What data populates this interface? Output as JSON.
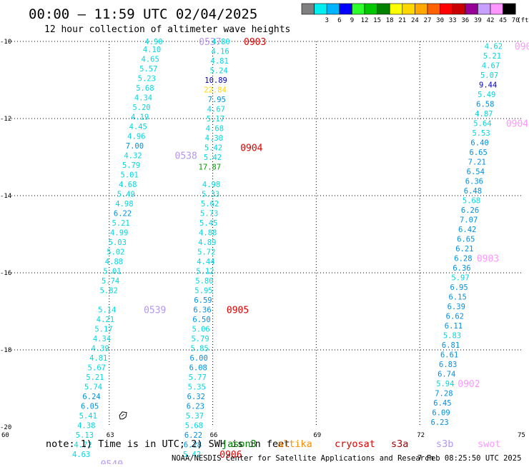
{
  "title": "00:00 — 11:59 UTC 02/04/2025",
  "subtitle": "12 hour collection of altimeter wave heights",
  "legend": {
    "unit": "(ft)",
    "bins": [
      {
        "label": "",
        "color": "#7f7f7f"
      },
      {
        "label": "3",
        "color": "#00eeee"
      },
      {
        "label": "6",
        "color": "#00b4ff"
      },
      {
        "label": "9",
        "color": "#0000ff"
      },
      {
        "label": "12",
        "color": "#2cff2c"
      },
      {
        "label": "15",
        "color": "#00c800"
      },
      {
        "label": "18",
        "color": "#008200"
      },
      {
        "label": "21",
        "color": "#ffff00"
      },
      {
        "label": "24",
        "color": "#ffd700"
      },
      {
        "label": "27",
        "color": "#ffa800"
      },
      {
        "label": "30",
        "color": "#ff6000"
      },
      {
        "label": "33",
        "color": "#ff0000"
      },
      {
        "label": "36",
        "color": "#c80000"
      },
      {
        "label": "39",
        "color": "#960096"
      },
      {
        "label": "42",
        "color": "#c8a0ff"
      },
      {
        "label": "45",
        "color": "#ff96ff"
      },
      {
        "label": "70",
        "color": "#000000"
      }
    ]
  },
  "map": {
    "lon_min": 60,
    "lon_max": 75,
    "lat_min": -20,
    "lat_max": -10,
    "x_ticks": [
      {
        "value": 60,
        "label": "60"
      },
      {
        "value": 63,
        "label": "63"
      },
      {
        "value": 66,
        "label": "66"
      },
      {
        "value": 69,
        "label": "69"
      },
      {
        "value": 72,
        "label": "72"
      },
      {
        "value": 75,
        "label": "75"
      }
    ],
    "y_ticks": [
      {
        "value": -10,
        "label": "-10"
      },
      {
        "value": -12,
        "label": "-12"
      },
      {
        "value": -14,
        "label": "-14"
      },
      {
        "value": -16,
        "label": "-16"
      },
      {
        "value": -18,
        "label": "-18"
      },
      {
        "value": -20,
        "label": "-20"
      }
    ],
    "gridlines": true,
    "island": {
      "lon": 63.4,
      "lat": -19.7
    }
  },
  "colors": {
    "swh_low": "#00d8e0",
    "swh_mid": "#0090e0",
    "swh_high": "#0000c8",
    "swh_22": "#ffd700",
    "swh_17": "#00a000",
    "pass_label_swot": "#ff96ff",
    "pass_label_s3b": "#b496f0",
    "pass_label_s3a": "#dd0000"
  },
  "tracks": [
    {
      "name": "0537",
      "color_key": "pass_label_s3b",
      "label_at": {
        "lon": 65.6,
        "lat": -10.0
      },
      "points": [
        {
          "lon": 64.55,
          "lat": -10.0,
          "v": "4.90"
        },
        {
          "lon": 64.5,
          "lat": -10.2,
          "v": "4.10"
        },
        {
          "lon": 64.45,
          "lat": -10.45,
          "v": "4.65"
        },
        {
          "lon": 64.4,
          "lat": -10.7,
          "v": "5.57"
        },
        {
          "lon": 64.35,
          "lat": -10.95,
          "v": "5.23"
        },
        {
          "lon": 64.3,
          "lat": -11.2,
          "v": "5.68"
        },
        {
          "lon": 64.25,
          "lat": -11.45,
          "v": "4.34"
        },
        {
          "lon": 64.2,
          "lat": -11.7,
          "v": "5.20"
        },
        {
          "lon": 64.15,
          "lat": -11.95,
          "v": "4.19"
        },
        {
          "lon": 64.1,
          "lat": -12.2,
          "v": "4.45"
        },
        {
          "lon": 64.05,
          "lat": -12.45,
          "v": "4.96"
        },
        {
          "lon": 64.0,
          "lat": -12.7,
          "v": "7.00"
        }
      ]
    },
    {
      "name": "0538",
      "color_key": "pass_label_s3b",
      "label_at": {
        "lon": 64.9,
        "lat": -12.95
      },
      "points": [
        {
          "lon": 63.95,
          "lat": -12.95,
          "v": "4.32"
        },
        {
          "lon": 63.9,
          "lat": -13.2,
          "v": "5.79"
        },
        {
          "lon": 63.85,
          "lat": -13.45,
          "v": "5.01"
        },
        {
          "lon": 63.8,
          "lat": -13.7,
          "v": "4.68"
        },
        {
          "lon": 63.75,
          "lat": -13.95,
          "v": "5.49"
        },
        {
          "lon": 63.7,
          "lat": -14.2,
          "v": "4.98"
        },
        {
          "lon": 63.65,
          "lat": -14.45,
          "v": "6.22"
        },
        {
          "lon": 63.6,
          "lat": -14.7,
          "v": "5.21"
        },
        {
          "lon": 63.55,
          "lat": -14.95,
          "v": "4.99"
        },
        {
          "lon": 63.5,
          "lat": -15.2,
          "v": "5.03"
        },
        {
          "lon": 63.45,
          "lat": -15.45,
          "v": "5.02"
        },
        {
          "lon": 63.4,
          "lat": -15.7,
          "v": "4.88"
        },
        {
          "lon": 63.35,
          "lat": -15.95,
          "v": "5.01"
        },
        {
          "lon": 63.3,
          "lat": -16.2,
          "v": "5.74"
        },
        {
          "lon": 63.25,
          "lat": -16.45,
          "v": "5.82"
        }
      ]
    },
    {
      "name": "0539",
      "color_key": "pass_label_s3b",
      "label_at": {
        "lon": 64.0,
        "lat": -16.95
      },
      "points": [
        {
          "lon": 63.2,
          "lat": -16.95,
          "v": "5.14"
        },
        {
          "lon": 63.15,
          "lat": -17.2,
          "v": "4.21"
        },
        {
          "lon": 63.1,
          "lat": -17.45,
          "v": "5.17"
        },
        {
          "lon": 63.05,
          "lat": -17.7,
          "v": "4.34"
        },
        {
          "lon": 63.0,
          "lat": -17.95,
          "v": "4.39"
        },
        {
          "lon": 62.95,
          "lat": -18.2,
          "v": "4.81"
        },
        {
          "lon": 62.9,
          "lat": -18.45,
          "v": "5.67"
        },
        {
          "lon": 62.85,
          "lat": -18.7,
          "v": "5.21"
        },
        {
          "lon": 62.8,
          "lat": -18.95,
          "v": "5.74"
        },
        {
          "lon": 62.75,
          "lat": -19.2,
          "v": "6.24"
        },
        {
          "lon": 62.7,
          "lat": -19.45,
          "v": "6.05"
        },
        {
          "lon": 62.65,
          "lat": -19.7,
          "v": "5.41"
        },
        {
          "lon": 62.6,
          "lat": -19.95,
          "v": "4.38"
        },
        {
          "lon": 62.55,
          "lat": -20.2,
          "v": "5.13"
        },
        {
          "lon": 62.5,
          "lat": -20.45,
          "v": "4.72"
        },
        {
          "lon": 62.45,
          "lat": -20.7,
          "v": "4.63"
        }
      ]
    },
    {
      "name": "0903",
      "color_key": "pass_label_s3a",
      "label_at": {
        "lon": 66.9,
        "lat": -10.0
      },
      "points": [
        {
          "lon": 66.5,
          "lat": -10.0,
          "v": "4.80"
        },
        {
          "lon": 66.48,
          "lat": -10.25,
          "v": "4.16"
        },
        {
          "lon": 66.46,
          "lat": -10.5,
          "v": "4.81"
        },
        {
          "lon": 66.44,
          "lat": -10.75,
          "v": "5.24"
        },
        {
          "lon": 66.42,
          "lat": -11.0,
          "v": "10.89",
          "c": "swh_high"
        },
        {
          "lon": 66.4,
          "lat": -11.25,
          "v": "22.84",
          "c": "swh_22"
        },
        {
          "lon": 66.38,
          "lat": -11.5,
          "v": "7.95"
        },
        {
          "lon": 66.36,
          "lat": -11.75,
          "v": "4.67"
        },
        {
          "lon": 66.34,
          "lat": -12.0,
          "v": "5.17"
        },
        {
          "lon": 66.32,
          "lat": -12.25,
          "v": "4.68"
        },
        {
          "lon": 66.3,
          "lat": -12.5,
          "v": "4.30"
        }
      ]
    },
    {
      "name": "0904",
      "color_key": "pass_label_s3a",
      "label_at": {
        "lon": 66.8,
        "lat": -12.75
      },
      "points": [
        {
          "lon": 66.28,
          "lat": -12.75,
          "v": "5.42"
        },
        {
          "lon": 66.26,
          "lat": -13.0,
          "v": "5.42"
        },
        {
          "lon": 66.24,
          "lat": -13.25,
          "v": "17.87",
          "c": "swh_17"
        },
        {
          "lon": 66.22,
          "lat": -13.7,
          "v": "4.98"
        },
        {
          "lon": 66.2,
          "lat": -13.95,
          "v": "5.33"
        },
        {
          "lon": 66.18,
          "lat": -14.2,
          "v": "5.62"
        },
        {
          "lon": 66.16,
          "lat": -14.45,
          "v": "5.73"
        },
        {
          "lon": 66.14,
          "lat": -14.7,
          "v": "5.45"
        },
        {
          "lon": 66.12,
          "lat": -14.95,
          "v": "4.88"
        },
        {
          "lon": 66.1,
          "lat": -15.2,
          "v": "4.89"
        },
        {
          "lon": 66.08,
          "lat": -15.45,
          "v": "5.72"
        },
        {
          "lon": 66.06,
          "lat": -15.7,
          "v": "4.44"
        },
        {
          "lon": 66.04,
          "lat": -15.95,
          "v": "5.12"
        },
        {
          "lon": 66.02,
          "lat": -16.2,
          "v": "5.80"
        },
        {
          "lon": 66.0,
          "lat": -16.45,
          "v": "5.95"
        },
        {
          "lon": 65.98,
          "lat": -16.7,
          "v": "6.59"
        }
      ]
    },
    {
      "name": "0905",
      "color_key": "pass_label_s3a",
      "label_at": {
        "lon": 66.4,
        "lat": -16.95
      },
      "points": [
        {
          "lon": 65.96,
          "lat": -16.95,
          "v": "6.36"
        },
        {
          "lon": 65.94,
          "lat": -17.2,
          "v": "6.50"
        },
        {
          "lon": 65.92,
          "lat": -17.45,
          "v": "5.06"
        },
        {
          "lon": 65.9,
          "lat": -17.7,
          "v": "5.79"
        },
        {
          "lon": 65.88,
          "lat": -17.95,
          "v": "5.85"
        },
        {
          "lon": 65.86,
          "lat": -18.2,
          "v": "6.00"
        },
        {
          "lon": 65.84,
          "lat": -18.45,
          "v": "6.08"
        },
        {
          "lon": 65.82,
          "lat": -18.7,
          "v": "5.77"
        },
        {
          "lon": 65.8,
          "lat": -18.95,
          "v": "5.35"
        },
        {
          "lon": 65.78,
          "lat": -19.2,
          "v": "6.32"
        },
        {
          "lon": 65.76,
          "lat": -19.45,
          "v": "6.23"
        },
        {
          "lon": 65.74,
          "lat": -19.7,
          "v": "5.37"
        },
        {
          "lon": 65.72,
          "lat": -19.95,
          "v": "5.68"
        },
        {
          "lon": 65.7,
          "lat": -20.2,
          "v": "6.22"
        },
        {
          "lon": 65.68,
          "lat": -20.45,
          "v": "6.28"
        },
        {
          "lon": 65.66,
          "lat": -20.7,
          "v": "5.42"
        }
      ]
    },
    {
      "name": "0906",
      "color_key": "pass_label_s3a",
      "label_at": {
        "lon": 66.2,
        "lat": -20.7
      },
      "points": []
    },
    {
      "name": "0540",
      "color_key": "pass_label_s3b",
      "label_at": {
        "lon": 62.75,
        "lat": -20.95
      },
      "points": []
    },
    {
      "name": "090",
      "color_key": "pass_label_swot",
      "label_at": {
        "lon": 74.75,
        "lat": -10.12
      },
      "points": [
        {
          "lon": 74.4,
          "lat": -10.12,
          "v": "4.62"
        },
        {
          "lon": 74.36,
          "lat": -10.37,
          "v": "5.21"
        },
        {
          "lon": 74.32,
          "lat": -10.62,
          "v": "4.67"
        },
        {
          "lon": 74.28,
          "lat": -10.87,
          "v": "5.07"
        },
        {
          "lon": 74.24,
          "lat": -11.12,
          "v": "9.44",
          "c": "swh_high"
        },
        {
          "lon": 74.2,
          "lat": -11.37,
          "v": "5.49"
        },
        {
          "lon": 74.16,
          "lat": -11.62,
          "v": "6.58"
        },
        {
          "lon": 74.12,
          "lat": -11.87,
          "v": "4.87"
        }
      ]
    },
    {
      "name": "0904",
      "color_key": "pass_label_swot",
      "label_at": {
        "lon": 74.5,
        "lat": -12.12
      },
      "points": [
        {
          "lon": 74.08,
          "lat": -12.12,
          "v": "5.64"
        },
        {
          "lon": 74.04,
          "lat": -12.37,
          "v": "5.53"
        },
        {
          "lon": 74.0,
          "lat": -12.62,
          "v": "6.40"
        },
        {
          "lon": 73.96,
          "lat": -12.87,
          "v": "6.65"
        },
        {
          "lon": 73.92,
          "lat": -13.12,
          "v": "7.21"
        },
        {
          "lon": 73.88,
          "lat": -13.37,
          "v": "6.54"
        },
        {
          "lon": 73.84,
          "lat": -13.62,
          "v": "6.36"
        },
        {
          "lon": 73.8,
          "lat": -13.87,
          "v": "6.48"
        },
        {
          "lon": 73.76,
          "lat": -14.12,
          "v": "5.68"
        },
        {
          "lon": 73.72,
          "lat": -14.37,
          "v": "6.26"
        },
        {
          "lon": 73.68,
          "lat": -14.62,
          "v": "7.07"
        },
        {
          "lon": 73.64,
          "lat": -14.87,
          "v": "6.42"
        },
        {
          "lon": 73.6,
          "lat": -15.12,
          "v": "6.65"
        },
        {
          "lon": 73.56,
          "lat": -15.37,
          "v": "6.21"
        }
      ]
    },
    {
      "name": "0903",
      "color_key": "pass_label_swot",
      "label_at": {
        "lon": 73.65,
        "lat": -15.62
      },
      "points": [
        {
          "lon": 73.52,
          "lat": -15.62,
          "v": "6.28"
        },
        {
          "lon": 73.48,
          "lat": -15.87,
          "v": "6.36"
        },
        {
          "lon": 73.44,
          "lat": -16.12,
          "v": "5.97"
        },
        {
          "lon": 73.4,
          "lat": -16.37,
          "v": "6.95"
        },
        {
          "lon": 73.36,
          "lat": -16.62,
          "v": "6.15"
        },
        {
          "lon": 73.32,
          "lat": -16.87,
          "v": "6.39"
        },
        {
          "lon": 73.28,
          "lat": -17.12,
          "v": "6.62"
        },
        {
          "lon": 73.24,
          "lat": -17.37,
          "v": "6.11"
        },
        {
          "lon": 73.2,
          "lat": -17.62,
          "v": "5.83"
        },
        {
          "lon": 73.16,
          "lat": -17.87,
          "v": "6.81"
        },
        {
          "lon": 73.12,
          "lat": -18.12,
          "v": "6.61"
        },
        {
          "lon": 73.08,
          "lat": -18.37,
          "v": "6.83"
        },
        {
          "lon": 73.04,
          "lat": -18.62,
          "v": "6.74"
        }
      ]
    },
    {
      "name": "0902",
      "color_key": "pass_label_swot",
      "label_at": {
        "lon": 73.1,
        "lat": -18.87
      },
      "points": [
        {
          "lon": 73.0,
          "lat": -18.87,
          "v": "5.94"
        },
        {
          "lon": 72.96,
          "lat": -19.12,
          "v": "7.28"
        },
        {
          "lon": 72.92,
          "lat": -19.37,
          "v": "6.45"
        },
        {
          "lon": 72.88,
          "lat": -19.62,
          "v": "6.09"
        },
        {
          "lon": 72.84,
          "lat": -19.87,
          "v": "6.23"
        }
      ]
    }
  ],
  "note": {
    "prefix": "note: 1) Time is in UTC; 2) SWH is in feet",
    "missions": [
      {
        "label": "jason3",
        "color": "#008200"
      },
      {
        "label": "altika",
        "color": "#ff8c00"
      },
      {
        "label": "cryosat",
        "color": "#e00000"
      },
      {
        "label": "s3a",
        "color": "#a00000"
      },
      {
        "label": "s3b",
        "color": "#b496f0"
      },
      {
        "label": "swot",
        "color": "#ff96ff"
      }
    ]
  },
  "footer": {
    "credit": "NOAA/NESDIS Center for Satellite Applications and Research",
    "timestamp": "7 Feb 08:25:50 UTC 2025"
  }
}
